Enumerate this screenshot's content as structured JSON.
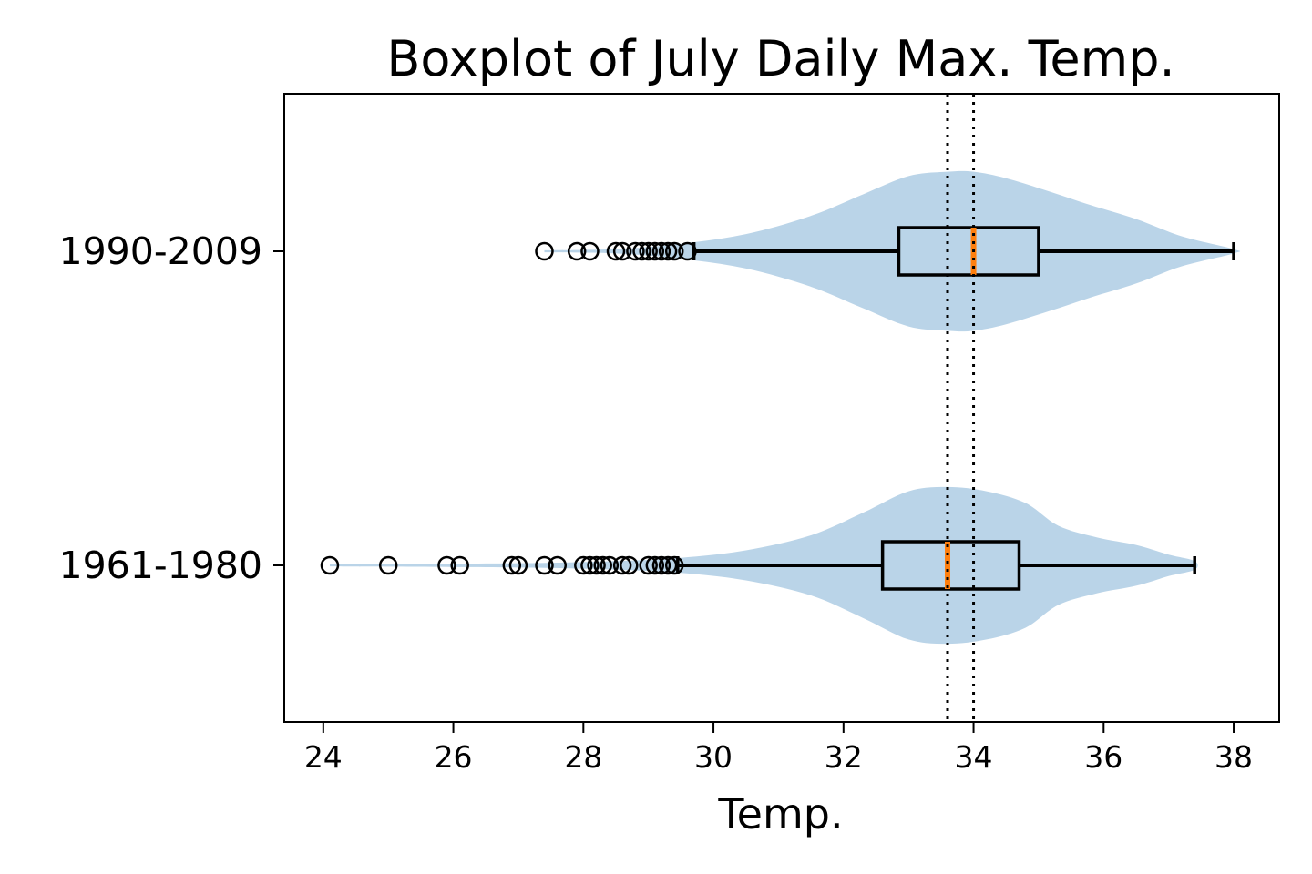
{
  "chart_data": {
    "type": "boxplot",
    "title": "Boxplot of July Daily Max. Temp.",
    "xlabel": "Temp.",
    "ylabel": "",
    "xlim": [
      23.4,
      38.7
    ],
    "xticks": [
      24,
      26,
      28,
      30,
      32,
      34,
      36,
      38
    ],
    "grid": false,
    "series": [
      {
        "name": "1961-1980",
        "whisker_low": 29.45,
        "q1": 32.6,
        "median": 33.6,
        "q3": 34.7,
        "whisker_high": 37.4,
        "outliers": [
          24.1,
          25.0,
          25.9,
          26.1,
          26.9,
          27.0,
          27.4,
          27.6,
          28.0,
          28.1,
          28.2,
          28.3,
          28.4,
          28.6,
          28.7,
          29.0,
          29.1,
          29.2,
          29.3,
          29.4
        ],
        "violin": {
          "x": [
            24.1,
            27.0,
            28.5,
            29.5,
            30.5,
            31.5,
            32.3,
            33.0,
            33.6,
            34.2,
            34.8,
            35.3,
            35.9,
            36.5,
            37.0,
            37.4
          ],
          "half_width": [
            0.01,
            0.02,
            0.04,
            0.07,
            0.14,
            0.28,
            0.49,
            0.69,
            0.73,
            0.69,
            0.58,
            0.37,
            0.26,
            0.19,
            0.1,
            0.04
          ]
        }
      },
      {
        "name": "1990-2009",
        "whisker_low": 29.7,
        "q1": 32.85,
        "median": 34.0,
        "q3": 35.0,
        "whisker_high": 38.0,
        "outliers": [
          27.4,
          27.9,
          28.1,
          28.5,
          28.6,
          28.8,
          28.9,
          29.0,
          29.1,
          29.2,
          29.3,
          29.4,
          29.6
        ],
        "violin": {
          "x": [
            27.4,
            28.5,
            29.5,
            30.5,
            31.5,
            32.3,
            33.0,
            33.6,
            34.0,
            34.5,
            35.2,
            35.8,
            36.5,
            37.2,
            38.0
          ],
          "half_width": [
            0.01,
            0.02,
            0.07,
            0.16,
            0.33,
            0.53,
            0.7,
            0.74,
            0.74,
            0.68,
            0.55,
            0.43,
            0.3,
            0.14,
            0.02
          ]
        }
      }
    ],
    "reference_lines": [
      33.6,
      34.0
    ],
    "colors": {
      "violin_fill": "#bad4e8",
      "box_edge": "#000000",
      "median": "#ff7f0e",
      "reference": "#000000"
    }
  }
}
